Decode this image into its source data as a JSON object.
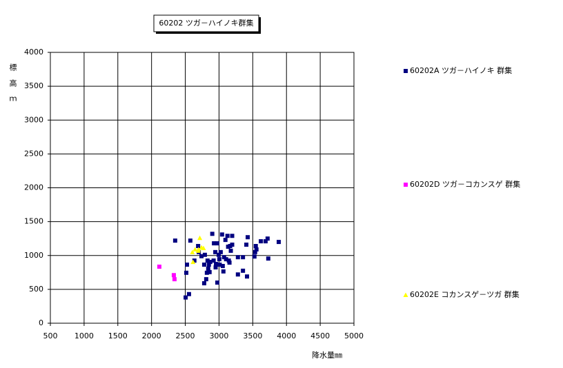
{
  "chart_data": {
    "type": "scatter",
    "title": "60202 ツガ－ハイノキ群集",
    "x_label": "降水量㎜",
    "y_label": "標高ｍ",
    "xlim": [
      500,
      5000
    ],
    "ylim": [
      0,
      4000
    ],
    "xticks": [
      500,
      1000,
      1500,
      2000,
      2500,
      3000,
      3500,
      4000,
      4500,
      5000
    ],
    "yticks": [
      0,
      500,
      1000,
      1500,
      2000,
      2500,
      3000,
      3500,
      4000
    ],
    "grid": true,
    "legend": "right",
    "series": [
      {
        "name": "60202A ツガ－ハイノキ 群集",
        "color": "#000080",
        "marker": "square",
        "x": [
          2350,
          2575,
          2505,
          2555,
          2515,
          2525,
          2635,
          2690,
          2700,
          2740,
          2780,
          2790,
          2780,
          2810,
          2820,
          2840,
          2830,
          2850,
          2870,
          2900,
          2925,
          2955,
          2945,
          2975,
          2975,
          2995,
          3005,
          3025,
          3045,
          3055,
          3065,
          3075,
          3095,
          3105,
          3125,
          3135,
          3145,
          3165,
          3175,
          3195,
          3195,
          3155,
          3280,
          3280,
          3355,
          3355,
          3405,
          3415,
          3425,
          3525,
          3535,
          3545,
          3555,
          3620,
          3690,
          3720,
          3730,
          3885,
          2860,
          2920,
          2950,
          3010
        ],
        "values": [
          1220,
          1220,
          380,
          430,
          745,
          865,
          925,
          1140,
          1050,
          990,
          865,
          1010,
          590,
          650,
          745,
          805,
          925,
          865,
          905,
          1320,
          1180,
          875,
          1050,
          600,
          1180,
          1010,
          945,
          1050,
          1310,
          845,
          765,
          975,
          1230,
          945,
          1290,
          1130,
          925,
          1140,
          1070,
          1290,
          1160,
          895,
          975,
          720,
          775,
          975,
          1160,
          690,
          1270,
          985,
          1050,
          1140,
          1090,
          1210,
          1210,
          1250,
          955,
          1200,
          755,
          925,
          825,
          865
        ]
      },
      {
        "name": "60202D ツガ－コカンスゲ 群集",
        "color": "#ff00ff",
        "marker": "square",
        "x": [
          2115,
          2330,
          2340
        ],
        "values": [
          835,
          710,
          650
        ]
      },
      {
        "name": "60202E コカンスゲ－ツガ 群集",
        "color": "#ffff00",
        "marker": "triangle",
        "x": [
          2605,
          2645,
          2695,
          2715,
          2740,
          2770,
          2690,
          2615
        ],
        "values": [
          1050,
          1090,
          1090,
          1260,
          1120,
          1110,
          1070,
          905
        ]
      }
    ]
  }
}
